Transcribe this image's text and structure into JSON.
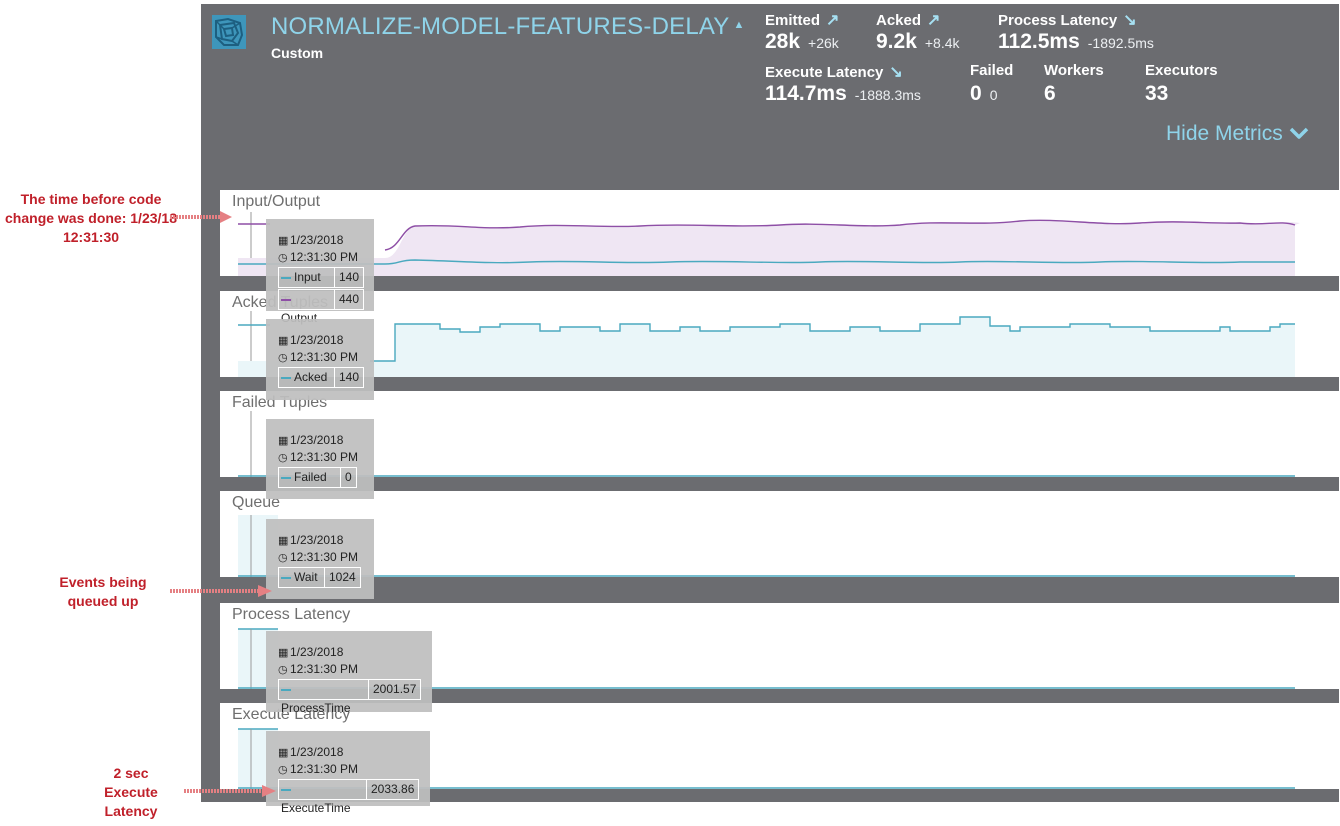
{
  "header": {
    "title": "NORMALIZE-MODEL-FEATURES-DELAY",
    "subtitle": "Custom",
    "hide_metrics_label": "Hide Metrics"
  },
  "metrics": {
    "emitted": {
      "label": "Emitted",
      "value": "28k",
      "delta": "+26k",
      "trend": "up"
    },
    "acked": {
      "label": "Acked",
      "value": "9.2k",
      "delta": "+8.4k",
      "trend": "up"
    },
    "process_latency": {
      "label": "Process Latency",
      "value": "112.5ms",
      "delta": "-1892.5ms",
      "trend": "down"
    },
    "execute_latency": {
      "label": "Execute Latency",
      "value": "114.7ms",
      "delta": "-1888.3ms",
      "trend": "down"
    },
    "failed": {
      "label": "Failed",
      "value": "0",
      "delta": "0"
    },
    "workers": {
      "label": "Workers",
      "value": "6"
    },
    "executors": {
      "label": "Executors",
      "value": "33"
    }
  },
  "colors": {
    "panel": "#6b6c70",
    "accent": "#8fd4ea",
    "purple_series": "#8e4fa6",
    "blue_series": "#4aa9bf",
    "annotation": "#c0202a"
  },
  "cards": {
    "io": {
      "title": "Input/Output"
    },
    "acked": {
      "title": "Acked Tuples"
    },
    "failed": {
      "title": "Failed Tuples"
    },
    "queue": {
      "title": "Queue"
    },
    "process": {
      "title": "Process Latency"
    },
    "execute": {
      "title": "Execute Latency"
    }
  },
  "tooltips": {
    "io": {
      "date": "1/23/2018",
      "time": "12:31:30 PM",
      "rows": [
        {
          "name": "Input",
          "value": "140",
          "color": "#4aa9bf"
        },
        {
          "name": "Output",
          "value": "440",
          "color": "#8e4fa6"
        }
      ]
    },
    "acked": {
      "date": "1/23/2018",
      "time": "12:31:30 PM",
      "rows": [
        {
          "name": "Acked",
          "value": "140",
          "color": "#4aa9bf"
        }
      ]
    },
    "failed": {
      "date": "1/23/2018",
      "time": "12:31:30 PM",
      "rows": [
        {
          "name": "Failed",
          "value": "0",
          "color": "#4aa9bf"
        }
      ]
    },
    "queue": {
      "date": "1/23/2018",
      "time": "12:31:30 PM",
      "rows": [
        {
          "name": "Wait",
          "value": "1024",
          "color": "#4aa9bf"
        }
      ]
    },
    "process": {
      "date": "1/23/2018",
      "time": "12:31:30 PM",
      "rows": [
        {
          "name": "ProcessTime",
          "value": "2001.57",
          "color": "#4aa9bf"
        }
      ]
    },
    "execute": {
      "date": "1/23/2018",
      "time": "12:31:30 PM",
      "rows": [
        {
          "name": "ExecuteTime",
          "value": "2033.86",
          "color": "#4aa9bf"
        }
      ]
    }
  },
  "annotations": {
    "code_change": "The time before code change was done: 1/23/18 12:31:30",
    "queued": "Events being queued up",
    "latency": "2 sec Execute Latency"
  }
}
